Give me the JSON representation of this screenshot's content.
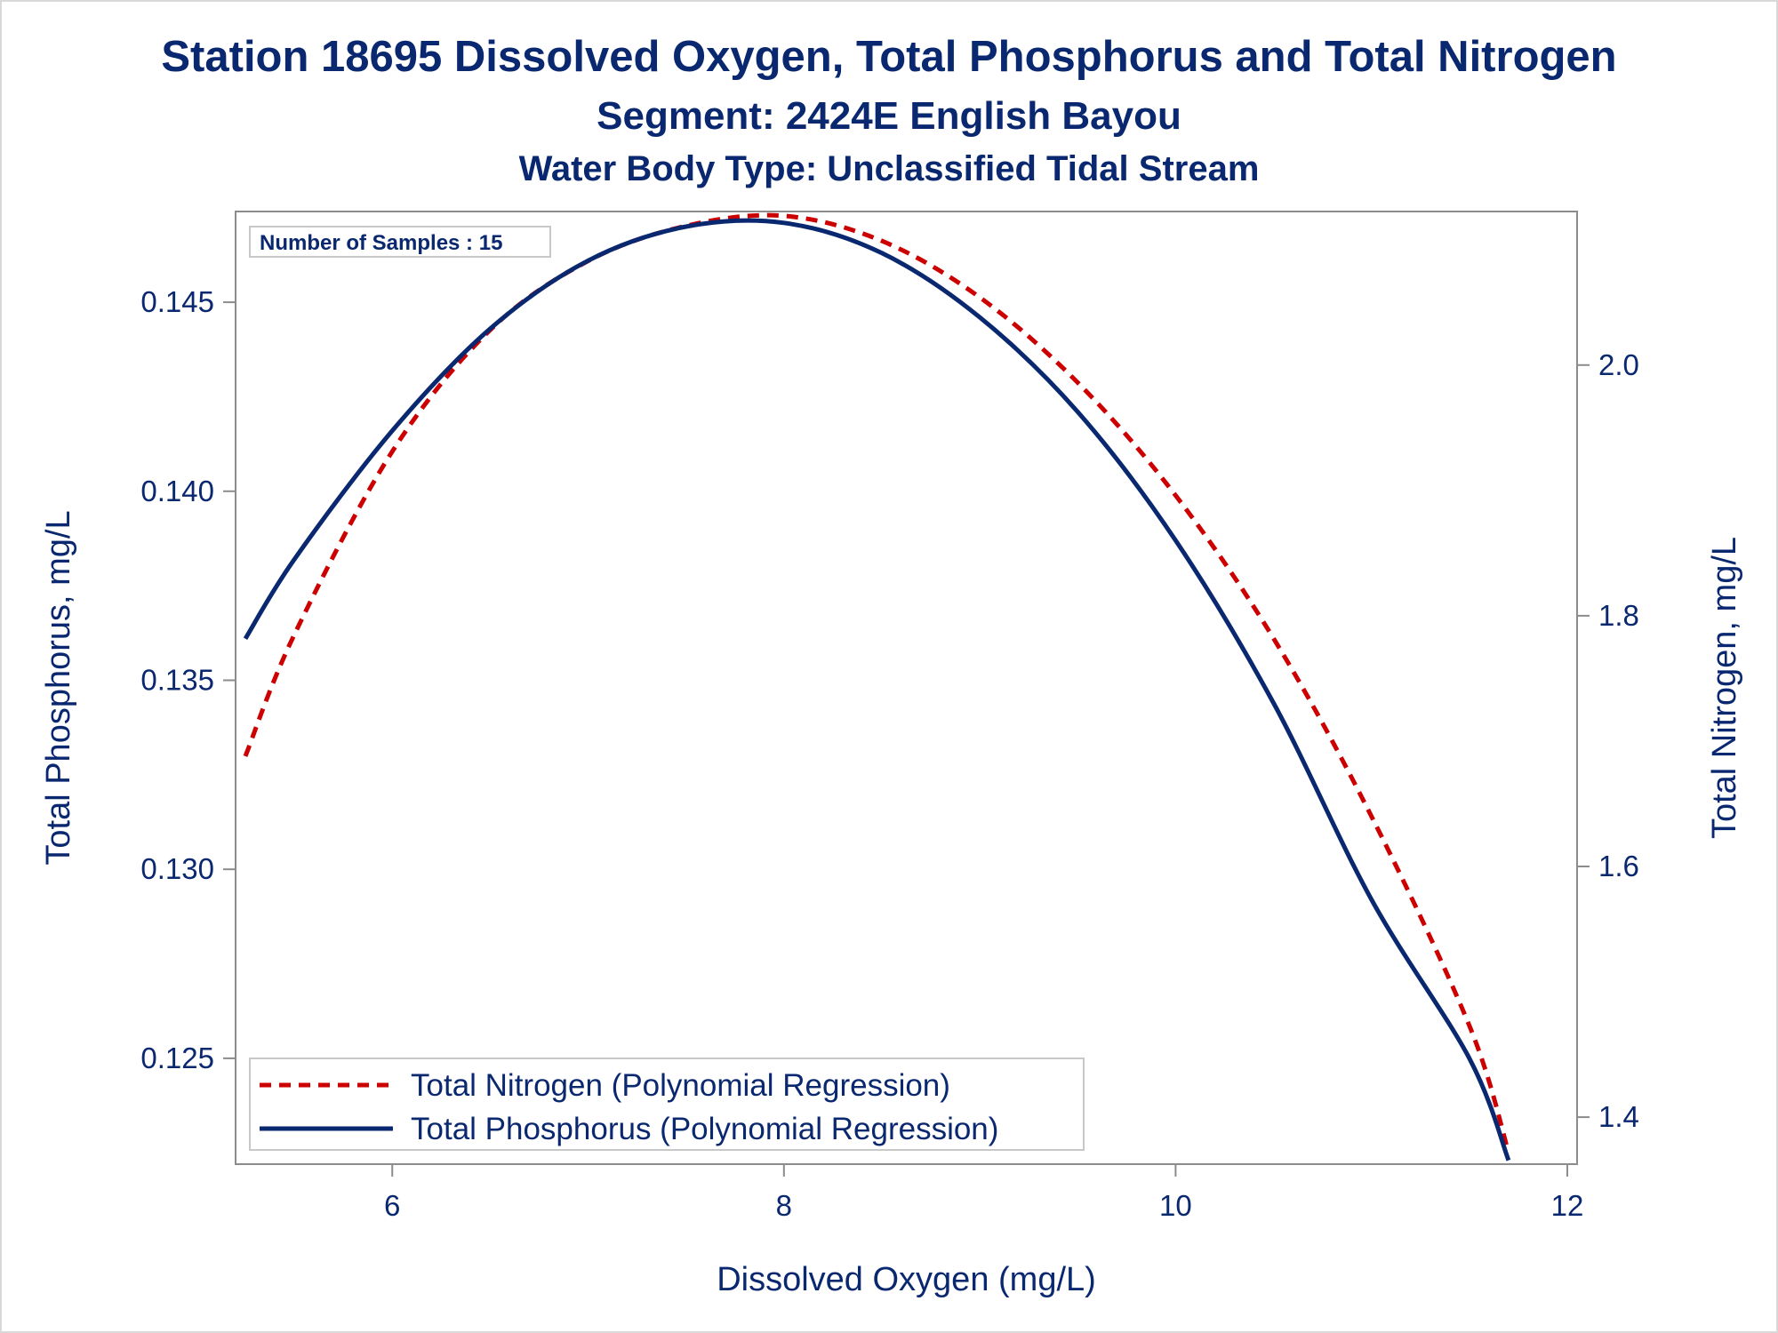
{
  "chart_data": {
    "type": "line",
    "title": "Station 18695  Dissolved Oxygen, Total Phosphorus and Total Nitrogen",
    "subtitle": "Segment: 2424E  English Bayou",
    "subtitle2": "Water Body Type: Unclassified Tidal Stream",
    "xlabel": "Dissolved Oxygen (mg/L)",
    "ylabel": "Total Phosphorus, mg/L",
    "y2label": "Total Nitrogen, mg/L",
    "xlim": [
      5.2,
      12.05
    ],
    "ylim": [
      0.1222,
      0.1474
    ],
    "y2lim": [
      1.3625,
      2.1225
    ],
    "x_ticks": [
      "6",
      "8",
      "10",
      "12"
    ],
    "y_ticks": [
      "0.125",
      "0.130",
      "0.135",
      "0.140",
      "0.145"
    ],
    "y2_ticks": [
      "1.4",
      "1.6",
      "1.8",
      "2.0"
    ],
    "inset_text": "Number of Samples : 15",
    "legend_position": "bottom-left",
    "grid": false,
    "series": [
      {
        "name": "Total Nitrogen (Polynomial Regression)",
        "axis": "y2",
        "color": "#cc0000",
        "style": "dashed",
        "x": [
          5.25,
          5.5,
          6.0,
          6.5,
          7.0,
          7.5,
          8.0,
          8.5,
          9.0,
          9.5,
          10.0,
          10.5,
          11.0,
          11.5,
          11.7
        ],
        "y": [
          1.688,
          1.785,
          1.931,
          2.028,
          2.083,
          2.111,
          2.119,
          2.099,
          2.054,
          1.986,
          1.896,
          1.782,
          1.64,
          1.473,
          1.372
        ]
      },
      {
        "name": "Total Phosphorus (Polynomial Regression)",
        "axis": "y",
        "color": "#0a2870",
        "style": "solid",
        "x": [
          5.25,
          5.5,
          6.0,
          6.5,
          7.0,
          7.5,
          8.0,
          8.5,
          9.0,
          9.5,
          10.0,
          10.5,
          11.0,
          11.5,
          11.7
        ],
        "y": [
          0.1361,
          0.1382,
          0.1416,
          0.1443,
          0.1461,
          0.147,
          0.1471,
          0.1463,
          0.1446,
          0.1421,
          0.1387,
          0.1344,
          0.1292,
          0.125,
          0.1223
        ]
      }
    ]
  }
}
